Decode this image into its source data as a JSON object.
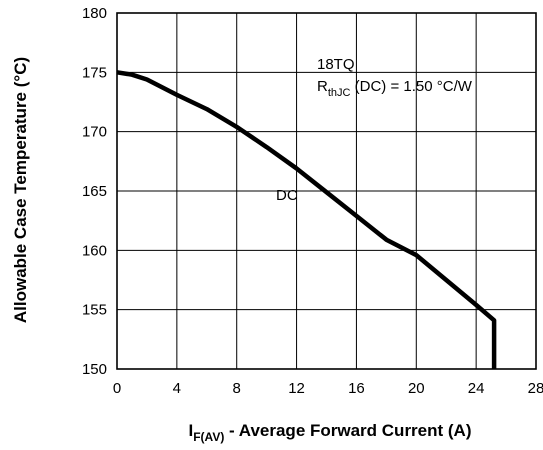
{
  "chart_data": {
    "type": "line",
    "xlabel": {
      "main": "I",
      "sub": "F(AV)",
      "rest": " - Average Forward Current (A)"
    },
    "ylabel": "Allowable Case Temperature (°C)",
    "xlim": [
      0,
      28
    ],
    "ylim": [
      150,
      180
    ],
    "xticks": [
      "0",
      "4",
      "8",
      "12",
      "16",
      "20",
      "24",
      "28"
    ],
    "yticks": [
      "150",
      "155",
      "160",
      "165",
      "170",
      "175",
      "180"
    ],
    "grid": true,
    "series": [
      {
        "name": "DC",
        "x": [
          0,
          1,
          2,
          4,
          6,
          8,
          10,
          12,
          14,
          16,
          18,
          20,
          22,
          24,
          25.2,
          25.2,
          25.2
        ],
        "y": [
          175,
          174.8,
          174.4,
          173.1,
          171.9,
          170.4,
          168.7,
          166.9,
          164.9,
          162.9,
          160.9,
          159.6,
          157.5,
          155.4,
          154.1,
          154.1,
          150
        ]
      }
    ],
    "annotations": {
      "part": "18TQ",
      "rth_main": "R",
      "rth_sub": "thJC",
      "rth_rest": " (DC) = 1.50 °C/W",
      "curve_label": "DC"
    }
  }
}
